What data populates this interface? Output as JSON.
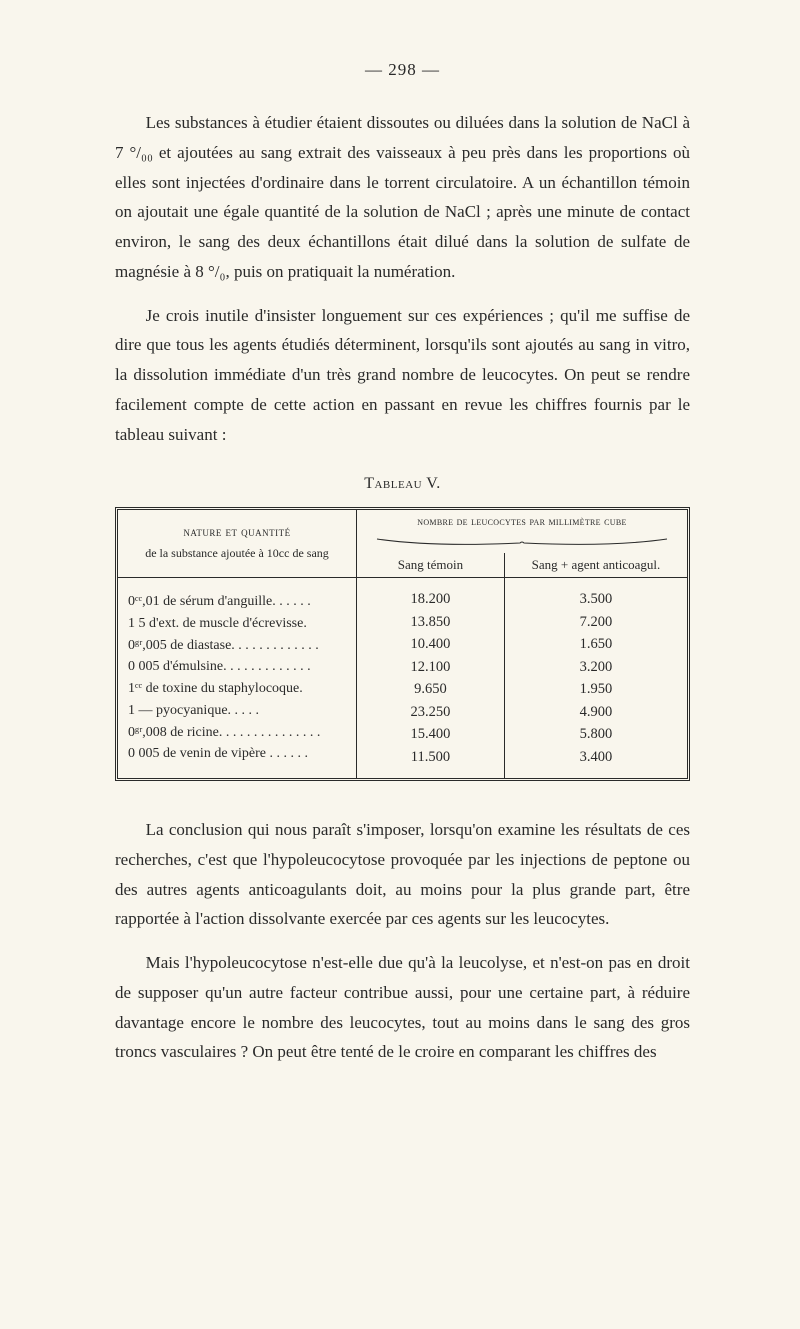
{
  "page_number": "— 298 —",
  "para1": "Les substances à étudier étaient dissoutes ou diluées dans la solution de NaCl à 7 °/₀₀ et ajoutées au sang extrait des vaisseaux à peu près dans les proportions où elles sont injectées d'ordinaire dans le torrent circulatoire. A un échantillon témoin on ajoutait une égale quantité de la solution de NaCl ; après une minute de contact environ, le sang des deux échantillons était dilué dans la solution de sulfate de magnésie à 8 °/₀, puis on pratiquait la numération.",
  "para2": "Je crois inutile d'insister longuement sur ces expériences ; qu'il me suffise de dire que tous les agents étudiés déterminent, lorsqu'ils sont ajoutés au sang in vitro, la dissolution immédiate d'un très grand nombre de leucocytes. On peut se rendre facilement compte de cette action en passant en revue les chiffres fournis par le tableau suivant :",
  "table": {
    "title": "Tableau V.",
    "header": {
      "col1_top": "nature et quantité",
      "col1_bottom": "de la substance ajoutée à 10cc de sang",
      "col_span": "nombre de leucocytes par millimètre cube",
      "col2": "Sang témoin",
      "col3": "Sang + agent anticoagul."
    },
    "rows": [
      {
        "label": "0ᶜᶜ,01   de sérum d'anguille. . . . . .",
        "a": "18.200",
        "b": "3.500"
      },
      {
        "label": "1   5   d'ext. de muscle d'écrevisse.",
        "a": "13.850",
        "b": "7.200"
      },
      {
        "label": "0ᵍʳ,005 de diastase. . . . . . . . . . . . .",
        "a": "10.400",
        "b": "1.650"
      },
      {
        "label": "0   005 d'émulsine. . . . . . . . . . . . .",
        "a": "12.100",
        "b": "3.200"
      },
      {
        "label": "1ᶜᶜ       de toxine du staphylocoque.",
        "a": "9.650",
        "b": "1.950"
      },
      {
        "label": "1          —      pyocyanique. . . . .",
        "a": "23.250",
        "b": "4.900"
      },
      {
        "label": "0ᵍʳ,008 de ricine. . . . . . . . . . . . . . .",
        "a": "15.400",
        "b": "5.800"
      },
      {
        "label": "0   005 de venin de vipère . . . . . .",
        "a": "11.500",
        "b": "3.400"
      }
    ]
  },
  "para3": "La conclusion qui nous paraît s'imposer, lorsqu'on examine les résultats de ces recherches, c'est que l'hypoleucocytose provoquée par les injections de peptone ou des autres agents anticoagulants doit, au moins pour la plus grande part, être rapportée à l'action dissolvante exercée par ces agents sur les leucocytes.",
  "para4": "Mais l'hypoleucocytose n'est-elle due qu'à la leucolyse, et n'est-on pas en droit de supposer qu'un autre facteur contribue aussi, pour une certaine part, à réduire davantage encore le nombre des leucocytes, tout au moins dans le sang des gros troncs vasculaires ? On peut être tenté de le croire en comparant les chiffres des"
}
